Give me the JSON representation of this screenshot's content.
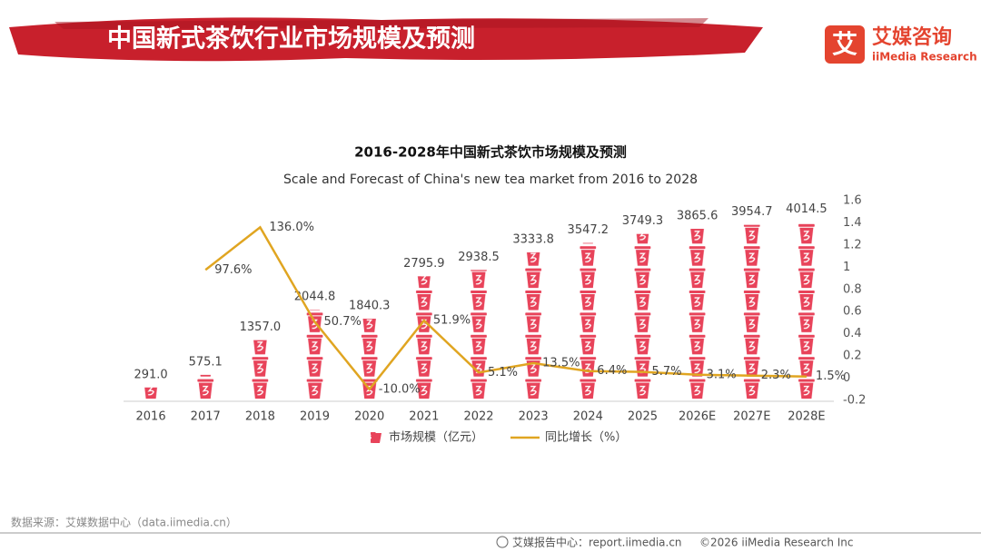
{
  "header": {
    "title": "中国新式茶饮行业市场规模及预测",
    "logo_icon": "艾",
    "logo_text": "艾媒咨询",
    "logo_sub": "iiMedia Research"
  },
  "chart_data": {
    "type": "bar-line",
    "title": "2016-2028年中国新式茶饮市场规模及预测",
    "subtitle": "Scale and Forecast of China's new tea market from 2016 to 2028",
    "categories": [
      "2016",
      "2017",
      "2018",
      "2019",
      "2020",
      "2021",
      "2022",
      "2023",
      "2024",
      "2025",
      "2026E",
      "2027E",
      "2028E"
    ],
    "ylim": [
      0,
      4500
    ],
    "y2lim": [
      -0.2,
      1.6
    ],
    "y2ticks": [
      -0.2,
      0,
      0.2,
      0.4,
      0.6,
      0.8,
      1,
      1.2,
      1.4,
      1.6
    ],
    "series": [
      {
        "name": "市场规模（亿元）",
        "type": "bar",
        "color": "#e8435a",
        "values": [
          291.0,
          575.1,
          1357.0,
          2044.8,
          1840.3,
          2795.9,
          2938.5,
          3333.8,
          3547.2,
          3749.3,
          3865.6,
          3954.7,
          4014.5
        ],
        "value_labels": [
          "291.0",
          "575.1",
          "1357.0",
          "2044.8",
          "1840.3",
          "2795.9",
          "2938.5",
          "3333.8",
          "3547.2",
          "3749.3",
          "3865.6",
          "3954.7",
          "4014.5"
        ]
      },
      {
        "name": "同比增长（%）",
        "type": "line",
        "axis": "y2",
        "color": "#e0a521",
        "values": [
          null,
          0.976,
          1.36,
          0.507,
          -0.1,
          0.519,
          0.051,
          0.135,
          0.064,
          0.057,
          0.031,
          0.023,
          0.015
        ],
        "value_labels": [
          null,
          "97.6%",
          "136.0%",
          "50.7%",
          "-10.0%",
          "51.9%",
          "5.1%",
          "13.5%",
          "6.4%",
          "5.7%",
          "3.1%",
          "2.3%",
          "1.5%"
        ]
      }
    ]
  },
  "footer": {
    "source": "数据来源：艾媒数据中心（data.iimedia.cn）",
    "report": "艾媒报告中心：report.iimedia.cn",
    "copyright": "©2026  iiMedia Research  Inc"
  }
}
